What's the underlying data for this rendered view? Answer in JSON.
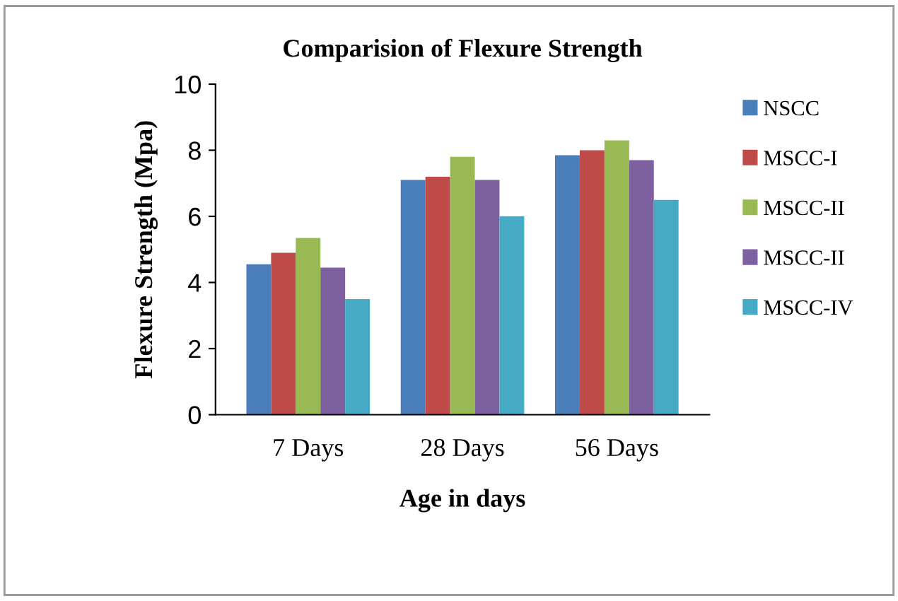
{
  "chart_data": {
    "type": "bar",
    "title": "Comparision of Flexure Strength",
    "xlabel": "Age in days",
    "ylabel": "Flexure Strength (Mpa)",
    "categories": [
      "7 Days",
      "28 Days",
      "56 Days"
    ],
    "series": [
      {
        "name": "NSCC",
        "color": "#4a7ebb",
        "values": [
          4.55,
          7.1,
          7.85
        ]
      },
      {
        "name": "MSCC-I",
        "color": "#be4b48",
        "values": [
          4.9,
          7.2,
          8.0
        ]
      },
      {
        "name": "MSCC-II",
        "color": "#98b954",
        "values": [
          5.35,
          7.8,
          8.3
        ]
      },
      {
        "name": "MSCC-II",
        "color": "#7d60a0",
        "values": [
          4.45,
          7.1,
          7.7
        ]
      },
      {
        "name": "MSCC-IV",
        "color": "#46aac5",
        "values": [
          3.5,
          6.0,
          6.5
        ]
      }
    ],
    "ylim": [
      0,
      10
    ],
    "yticks": [
      0,
      2,
      4,
      6,
      8,
      10
    ],
    "grid": false,
    "legend": "right"
  }
}
